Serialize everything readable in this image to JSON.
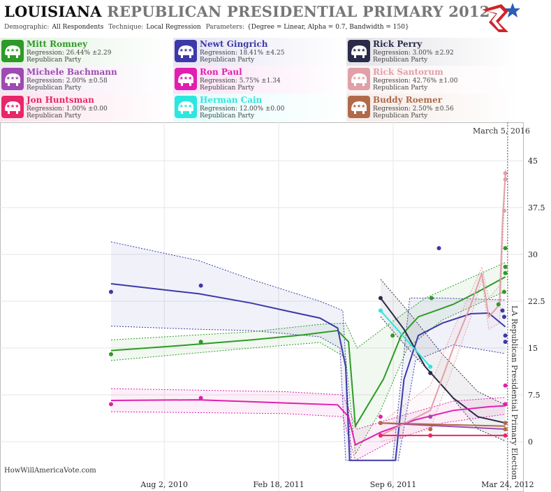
{
  "header": {
    "state": "LOUISIANA",
    "title_rest": "REPUBLICAN PRESIDENTIAL PRIMARY 2012",
    "demographic_label": "Demographic:",
    "demographic_value": "All Respondents",
    "technique_label": "Technique:",
    "technique_value": "Local Regression",
    "parameters_label": "Parameters:",
    "parameters_value": "{Degree = Linear, Alpha = 0.7, Bandwidth = 150}"
  },
  "legend": [
    {
      "name": "Mitt Romney",
      "regression": "Regression: 26.44% ±2.29",
      "party": "Republican Party",
      "color": "#2e9a27"
    },
    {
      "name": "Newt Gingrich",
      "regression": "Regression: 18.41% ±4.25",
      "party": "Republican Party",
      "color": "#3d39a8"
    },
    {
      "name": "Rick Perry",
      "regression": "Regression: 3.00% ±2.92",
      "party": "Republican Party",
      "color": "#2a2a4a"
    },
    {
      "name": "Michele Bachmann",
      "regression": "Regression: 2.00% ±0.58",
      "party": "Republican Party",
      "color": "#9d4bb0"
    },
    {
      "name": "Ron Paul",
      "regression": "Regression: 5.75% ±1.34",
      "party": "Republican Party",
      "color": "#e01fb0"
    },
    {
      "name": "Rick Santorum",
      "regression": "Regression: 42.76% ±1.00",
      "party": "Republican Party",
      "color": "#e0a0a8"
    },
    {
      "name": "Jon Huntsman",
      "regression": "Regression: 1.00% ±0.00",
      "party": "Republican Party",
      "color": "#e8266a"
    },
    {
      "name": "Herman Cain",
      "regression": "Regression: 12.00% ±0.00",
      "party": "Republican Party",
      "color": "#2ee6e0"
    },
    {
      "name": "Buddy Roemer",
      "regression": "Regression: 2.50% ±0.56",
      "party": "Republican Party",
      "color": "#b06a4a"
    }
  ],
  "chart_data": {
    "type": "line",
    "date_label": "March 5, 2016",
    "event_label": "LA Republican Presidential Primary Election",
    "event_date": "2012-03-24",
    "x_ticks": [
      "Aug 2, 2010",
      "Feb 18, 2011",
      "Sep 6, 2011",
      "Mar 24, 2012"
    ],
    "y_ticks": [
      0,
      7.5,
      15,
      22.5,
      30,
      37.5,
      45
    ],
    "ylim": [
      -3,
      50
    ],
    "grid": true,
    "series": [
      {
        "name": "Mitt Romney",
        "color": "#2e9a27",
        "line": [
          [
            "2010-05-01",
            14.6
          ],
          [
            "2010-09-01",
            15.4
          ],
          [
            "2011-01-01",
            16.3
          ],
          [
            "2011-04-01",
            17.1
          ],
          [
            "2011-06-01",
            17.8
          ],
          [
            "2011-06-20",
            16
          ],
          [
            "2011-07-02",
            2.5
          ],
          [
            "2011-08-20",
            10
          ],
          [
            "2011-09-20",
            17
          ],
          [
            "2011-10-20",
            20
          ],
          [
            "2011-12-20",
            22
          ],
          [
            "2012-02-01",
            24
          ],
          [
            "2012-03-20",
            26.4
          ]
        ],
        "band_upper": [
          [
            "2010-05-01",
            16.3
          ],
          [
            "2011-01-01",
            17.6
          ],
          [
            "2011-05-01",
            18.8
          ],
          [
            "2011-06-15",
            19
          ],
          [
            "2011-07-05",
            15
          ],
          [
            "2011-09-01",
            19
          ],
          [
            "2011-11-01",
            23
          ],
          [
            "2012-01-01",
            25.5
          ],
          [
            "2012-03-20",
            28.7
          ]
        ],
        "band_lower": [
          [
            "2010-05-01",
            13
          ],
          [
            "2011-01-01",
            15
          ],
          [
            "2011-05-01",
            15.9
          ],
          [
            "2011-06-15",
            13.5
          ],
          [
            "2011-07-02",
            -2
          ],
          [
            "2011-08-15",
            5
          ],
          [
            "2011-10-01",
            15
          ],
          [
            "2011-12-01",
            19.5
          ],
          [
            "2012-03-20",
            24.1
          ]
        ],
        "points": [
          [
            "2010-05-01",
            14
          ],
          [
            "2010-10-05",
            16
          ],
          [
            "2011-09-05",
            17
          ],
          [
            "2011-11-12",
            23
          ],
          [
            "2012-03-08",
            22
          ],
          [
            "2012-03-18",
            24
          ],
          [
            "2012-03-20",
            27
          ],
          [
            "2012-03-20",
            28
          ],
          [
            "2012-03-20",
            31
          ]
        ]
      },
      {
        "name": "Newt Gingrich",
        "color": "#3d39a8",
        "line": [
          [
            "2010-05-01",
            25.3
          ],
          [
            "2010-10-01",
            23.7
          ],
          [
            "2011-01-01",
            22.2
          ],
          [
            "2011-03-01",
            21
          ],
          [
            "2011-05-01",
            19.8
          ],
          [
            "2011-06-01",
            18.2
          ],
          [
            "2011-06-15",
            12
          ],
          [
            "2011-06-22",
            -3
          ],
          [
            "2011-09-10",
            -3
          ],
          [
            "2011-09-25",
            10
          ],
          [
            "2011-10-20",
            17
          ],
          [
            "2011-12-01",
            19
          ],
          [
            "2012-01-20",
            20.5
          ],
          [
            "2012-02-20",
            20.6
          ],
          [
            "2012-03-20",
            18.4
          ]
        ],
        "band_upper": [
          [
            "2010-05-01",
            32
          ],
          [
            "2010-10-01",
            29
          ],
          [
            "2011-01-01",
            26
          ],
          [
            "2011-05-01",
            22.5
          ],
          [
            "2011-06-10",
            21
          ],
          [
            "2011-06-25",
            -3
          ],
          [
            "2011-09-05",
            -3
          ],
          [
            "2011-10-05",
            23
          ],
          [
            "2011-12-01",
            23
          ],
          [
            "2012-03-20",
            22.7
          ]
        ],
        "band_lower": [
          [
            "2010-05-01",
            18.5
          ],
          [
            "2010-10-01",
            18
          ],
          [
            "2011-01-01",
            17.8
          ],
          [
            "2011-05-01",
            16.8
          ],
          [
            "2011-06-05",
            15
          ],
          [
            "2011-06-15",
            -3
          ],
          [
            "2011-09-15",
            -3
          ],
          [
            "2011-10-15",
            13
          ],
          [
            "2011-12-20",
            15.5
          ],
          [
            "2012-03-20",
            14.1
          ]
        ],
        "points": [
          [
            "2010-05-01",
            24
          ],
          [
            "2010-10-05",
            25
          ],
          [
            "2011-11-25",
            31
          ],
          [
            "2012-03-15",
            21
          ],
          [
            "2012-03-18",
            20
          ],
          [
            "2012-03-20",
            16
          ],
          [
            "2012-03-20",
            17
          ]
        ]
      },
      {
        "name": "Rick Perry",
        "color": "#2a2a4a",
        "line": [
          [
            "2011-08-15",
            23
          ],
          [
            "2011-09-25",
            18
          ],
          [
            "2011-11-01",
            12
          ],
          [
            "2011-12-20",
            7
          ],
          [
            "2012-02-01",
            4
          ],
          [
            "2012-03-20",
            3
          ]
        ],
        "band_upper": [
          [
            "2011-08-15",
            26
          ],
          [
            "2011-10-01",
            21
          ],
          [
            "2011-12-01",
            14
          ],
          [
            "2012-02-01",
            8
          ],
          [
            "2012-03-20",
            5.9
          ]
        ],
        "band_lower": [
          [
            "2011-08-15",
            20
          ],
          [
            "2011-10-01",
            15
          ],
          [
            "2011-12-01",
            9
          ],
          [
            "2012-02-01",
            2
          ],
          [
            "2012-03-20",
            0.1
          ]
        ],
        "points": [
          [
            "2011-08-15",
            23
          ],
          [
            "2011-11-10",
            11
          ]
        ]
      },
      {
        "name": "Michele Bachmann",
        "color": "#9d4bb0",
        "line": [
          [
            "2011-08-15",
            3
          ],
          [
            "2012-03-20",
            2
          ]
        ],
        "band_upper": [],
        "band_lower": [],
        "points": [
          [
            "2011-08-15",
            3
          ],
          [
            "2011-11-10",
            4
          ]
        ]
      },
      {
        "name": "Ron Paul",
        "color": "#e01fb0",
        "line": [
          [
            "2010-05-01",
            6.6
          ],
          [
            "2010-10-01",
            6.7
          ],
          [
            "2011-03-01",
            6.2
          ],
          [
            "2011-06-01",
            5.9
          ],
          [
            "2011-06-20",
            4
          ],
          [
            "2011-07-02",
            -0.5
          ],
          [
            "2011-08-15",
            1.5
          ],
          [
            "2011-10-15",
            3.5
          ],
          [
            "2011-12-20",
            5
          ],
          [
            "2012-02-20",
            5.6
          ],
          [
            "2012-03-20",
            5.75
          ]
        ],
        "band_upper": [
          [
            "2010-05-01",
            8.5
          ],
          [
            "2011-03-01",
            8
          ],
          [
            "2011-06-10",
            7.5
          ],
          [
            "2011-07-05",
            2
          ],
          [
            "2011-09-15",
            4
          ],
          [
            "2011-12-20",
            6.5
          ],
          [
            "2012-03-20",
            7.1
          ]
        ],
        "band_lower": [
          [
            "2010-05-01",
            4.8
          ],
          [
            "2011-03-01",
            4.5
          ],
          [
            "2011-06-10",
            4
          ],
          [
            "2011-07-02",
            -3
          ],
          [
            "2011-09-01",
            0
          ],
          [
            "2011-12-01",
            3
          ],
          [
            "2012-03-20",
            4.4
          ]
        ],
        "points": [
          [
            "2010-05-01",
            6
          ],
          [
            "2010-10-05",
            7
          ],
          [
            "2011-08-15",
            4
          ],
          [
            "2012-03-20",
            6
          ],
          [
            "2012-03-20",
            9
          ]
        ]
      },
      {
        "name": "Rick Santorum",
        "color": "#e0a0a8",
        "line": [
          [
            "2011-08-15",
            1
          ],
          [
            "2011-11-10",
            5
          ],
          [
            "2011-12-20",
            15
          ],
          [
            "2012-01-20",
            22
          ],
          [
            "2012-02-08",
            27
          ],
          [
            "2012-02-20",
            20
          ],
          [
            "2012-03-01",
            21
          ],
          [
            "2012-03-10",
            22
          ],
          [
            "2012-03-15",
            35
          ],
          [
            "2012-03-20",
            42.8
          ]
        ],
        "band_upper": [
          [
            "2011-08-15",
            3
          ],
          [
            "2011-11-10",
            9
          ],
          [
            "2011-12-20",
            18
          ],
          [
            "2012-01-20",
            24
          ],
          [
            "2012-02-08",
            28
          ],
          [
            "2012-02-20",
            23
          ],
          [
            "2012-03-10",
            25
          ],
          [
            "2012-03-20",
            43.8
          ]
        ],
        "band_lower": [
          [
            "2011-08-15",
            0
          ],
          [
            "2011-11-10",
            2
          ],
          [
            "2011-12-20",
            12
          ],
          [
            "2012-01-20",
            20
          ],
          [
            "2012-02-08",
            26
          ],
          [
            "2012-02-20",
            18
          ],
          [
            "2012-03-10",
            19
          ],
          [
            "2012-03-20",
            41.8
          ]
        ],
        "points": [
          [
            "2011-08-15",
            1
          ],
          [
            "2012-03-18",
            37
          ],
          [
            "2012-03-20",
            42
          ],
          [
            "2012-03-20",
            43
          ]
        ]
      },
      {
        "name": "Jon Huntsman",
        "color": "#e8266a",
        "line": [
          [
            "2011-08-15",
            1
          ],
          [
            "2012-03-20",
            1
          ]
        ],
        "band_upper": [],
        "band_lower": [],
        "points": [
          [
            "2011-08-15",
            1
          ],
          [
            "2011-11-10",
            1
          ],
          [
            "2012-03-20",
            1
          ]
        ]
      },
      {
        "name": "Herman Cain",
        "color": "#2ee6e0",
        "line": [
          [
            "2011-08-15",
            21
          ],
          [
            "2011-11-10",
            12
          ]
        ],
        "band_upper": [],
        "band_lower": [],
        "points": [
          [
            "2011-08-15",
            21
          ],
          [
            "2011-11-10",
            12
          ]
        ]
      },
      {
        "name": "Buddy Roemer",
        "color": "#b06a4a",
        "line": [
          [
            "2011-08-15",
            3
          ],
          [
            "2012-03-20",
            2.5
          ]
        ],
        "band_upper": [],
        "band_lower": [],
        "points": [
          [
            "2011-08-15",
            3
          ],
          [
            "2011-11-10",
            2
          ],
          [
            "2012-03-20",
            2
          ],
          [
            "2012-03-20",
            3
          ]
        ]
      }
    ]
  },
  "footer": {
    "source": "HowWillAmericaVote.com"
  }
}
